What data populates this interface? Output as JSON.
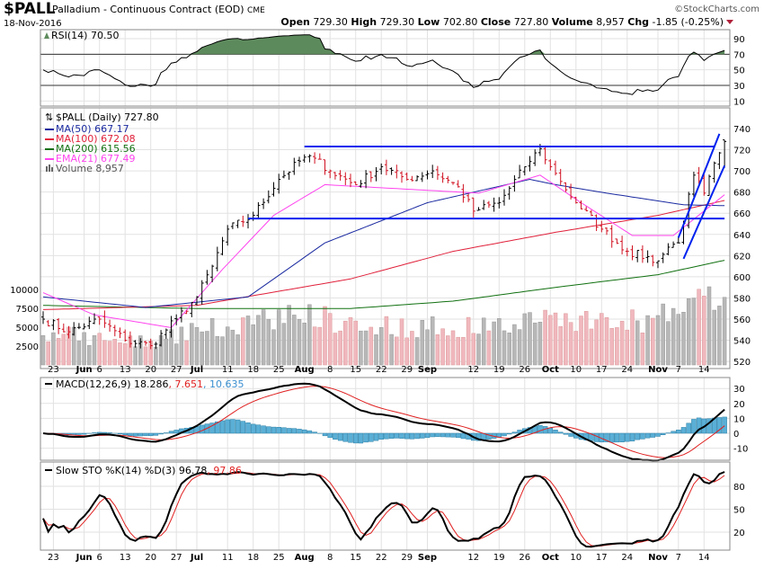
{
  "header": {
    "symbol": "$PALL",
    "name": "Palladium - Continuous Contract (EOD)",
    "exchange": "CME",
    "date": "18-Nov-2016",
    "copyright": "©StockCharts.com",
    "open_label": "Open",
    "open": "729.30",
    "high_label": "High",
    "high": "729.30",
    "low_label": "Low",
    "low": "702.80",
    "close_label": "Close",
    "close": "727.80",
    "volume_label": "Volume",
    "volume": "8,957",
    "chg_label": "Chg",
    "chg": "-1.85 (-0.25%)"
  },
  "legend": {
    "rsi": "RSI(14) 70.50",
    "price": "$PALL (Daily) 727.80",
    "ma50": "MA(50) 667.17",
    "ma100": "MA(100) 672.08",
    "ma200": "MA(200) 615.56",
    "ema21": "EMA(21) 677.49",
    "volume": "Volume 8,957",
    "macd_name": "MACD(12,26,9) 18.286",
    "macd_signal": ", 7.651",
    "macd_hist": ", 10.635",
    "sto_name": "Slow STO %K(14) %D(3) 96.78",
    "sto_d": ", 97.86"
  },
  "colors": {
    "ma50": "#1a2aa0",
    "ma100": "#e0203a",
    "ma200": "#117011",
    "ema21": "#ff44ee",
    "trend": "#0022ee",
    "hist": "#5aafd6",
    "vol_up": "#b8b8b8",
    "vol_down": "#f0b8be",
    "rsi_fill": "#5d8a5d"
  },
  "chart_data": {
    "type": "ohlc",
    "title": "$PALL Palladium - Continuous Contract (EOD)",
    "bars": 134,
    "last_bar": {
      "open": 729.3,
      "high": 729.3,
      "low": 702.8,
      "close": 727.8,
      "volume": 8957
    },
    "close_keypoints": [
      [
        0,
        560
      ],
      [
        5,
        548
      ],
      [
        11,
        560
      ],
      [
        16,
        540
      ],
      [
        21,
        535
      ],
      [
        26,
        560
      ],
      [
        30,
        581
      ],
      [
        33,
        610
      ],
      [
        36,
        645
      ],
      [
        41,
        658
      ],
      [
        46,
        692
      ],
      [
        51,
        713
      ],
      [
        53,
        712
      ],
      [
        56,
        700
      ],
      [
        61,
        687
      ],
      [
        66,
        704
      ],
      [
        71,
        692
      ],
      [
        76,
        700
      ],
      [
        81,
        685
      ],
      [
        84,
        662
      ],
      [
        89,
        670
      ],
      [
        94,
        704
      ],
      [
        97,
        721
      ],
      [
        99,
        704
      ],
      [
        101,
        690
      ],
      [
        104,
        670
      ],
      [
        109,
        645
      ],
      [
        114,
        624
      ],
      [
        120,
        615
      ],
      [
        122,
        628
      ],
      [
        124,
        632
      ],
      [
        127,
        696
      ],
      [
        129,
        679
      ],
      [
        132,
        717
      ],
      [
        133,
        727.8
      ]
    ],
    "volume_keypoints": [
      [
        0,
        4500
      ],
      [
        10,
        3500
      ],
      [
        20,
        3000
      ],
      [
        30,
        4500
      ],
      [
        40,
        5500
      ],
      [
        50,
        7000
      ],
      [
        60,
        5500
      ],
      [
        70,
        5000
      ],
      [
        80,
        5000
      ],
      [
        90,
        5200
      ],
      [
        100,
        6500
      ],
      [
        110,
        5500
      ],
      [
        120,
        6000
      ],
      [
        125,
        8000
      ],
      [
        133,
        8957
      ]
    ],
    "ma50": [
      [
        0,
        581
      ],
      [
        20,
        571
      ],
      [
        40,
        581
      ],
      [
        55,
        632
      ],
      [
        75,
        670
      ],
      [
        95,
        692
      ],
      [
        100,
        687
      ],
      [
        110,
        679
      ],
      [
        125,
        668
      ],
      [
        133,
        667.17
      ]
    ],
    "ma100": [
      [
        0,
        569
      ],
      [
        30,
        573
      ],
      [
        60,
        598
      ],
      [
        80,
        624
      ],
      [
        100,
        642
      ],
      [
        120,
        658
      ],
      [
        133,
        672.08
      ]
    ],
    "ma200": [
      [
        0,
        573
      ],
      [
        30,
        570
      ],
      [
        60,
        570
      ],
      [
        80,
        577
      ],
      [
        100,
        590
      ],
      [
        120,
        602
      ],
      [
        133,
        615.56
      ]
    ],
    "ema21": [
      [
        0,
        585
      ],
      [
        10,
        564
      ],
      [
        25,
        552
      ],
      [
        35,
        607
      ],
      [
        45,
        658
      ],
      [
        55,
        687
      ],
      [
        70,
        683
      ],
      [
        85,
        679
      ],
      [
        97,
        696
      ],
      [
        105,
        670
      ],
      [
        115,
        639
      ],
      [
        123,
        639
      ],
      [
        133,
        677.49
      ]
    ],
    "trendlines": [
      {
        "from": [
          51,
          723
        ],
        "to": [
          131,
          723
        ]
      },
      {
        "from": [
          40,
          655
        ],
        "to": [
          133,
          655
        ]
      },
      {
        "from": [
          124,
          637
        ],
        "to": [
          132,
          735
        ]
      },
      {
        "from": [
          125,
          617
        ],
        "to": [
          133,
          705
        ]
      }
    ],
    "price_axis": {
      "ticks": [
        520,
        540,
        560,
        580,
        600,
        620,
        640,
        660,
        680,
        700,
        720,
        740
      ],
      "ylim": [
        520,
        740
      ]
    },
    "volume_axis": {
      "ticks": [
        2500,
        5000,
        7500,
        10000
      ]
    },
    "rsi_axis": {
      "ticks": [
        10,
        30,
        50,
        70,
        90
      ]
    },
    "macd_axis": {
      "ticks": [
        -10,
        0,
        10,
        20,
        30
      ]
    },
    "sto_axis": {
      "ticks": [
        20,
        50,
        80
      ]
    },
    "x_ticks": [
      {
        "bar": 2,
        "label": "23"
      },
      {
        "bar": 8,
        "label": "Jun",
        "bold": true
      },
      {
        "bar": 11,
        "label": "6"
      },
      {
        "bar": 16,
        "label": "13"
      },
      {
        "bar": 21,
        "label": "20"
      },
      {
        "bar": 26,
        "label": "27"
      },
      {
        "bar": 30,
        "label": "Jul",
        "bold": true
      },
      {
        "bar": 36,
        "label": "11"
      },
      {
        "bar": 41,
        "label": "18"
      },
      {
        "bar": 46,
        "label": "25"
      },
      {
        "bar": 51,
        "label": "Aug",
        "bold": true
      },
      {
        "bar": 56,
        "label": "8"
      },
      {
        "bar": 61,
        "label": "15"
      },
      {
        "bar": 66,
        "label": "22"
      },
      {
        "bar": 71,
        "label": "29"
      },
      {
        "bar": 75,
        "label": "Sep",
        "bold": true
      },
      {
        "bar": 84,
        "label": "12"
      },
      {
        "bar": 89,
        "label": "19"
      },
      {
        "bar": 94,
        "label": "26"
      },
      {
        "bar": 99,
        "label": "Oct",
        "bold": true
      },
      {
        "bar": 104,
        "label": "10"
      },
      {
        "bar": 109,
        "label": "17"
      },
      {
        "bar": 114,
        "label": "24"
      },
      {
        "bar": 120,
        "label": "Nov",
        "bold": true
      },
      {
        "bar": 124,
        "label": "7"
      },
      {
        "bar": 129,
        "label": "14"
      }
    ]
  }
}
